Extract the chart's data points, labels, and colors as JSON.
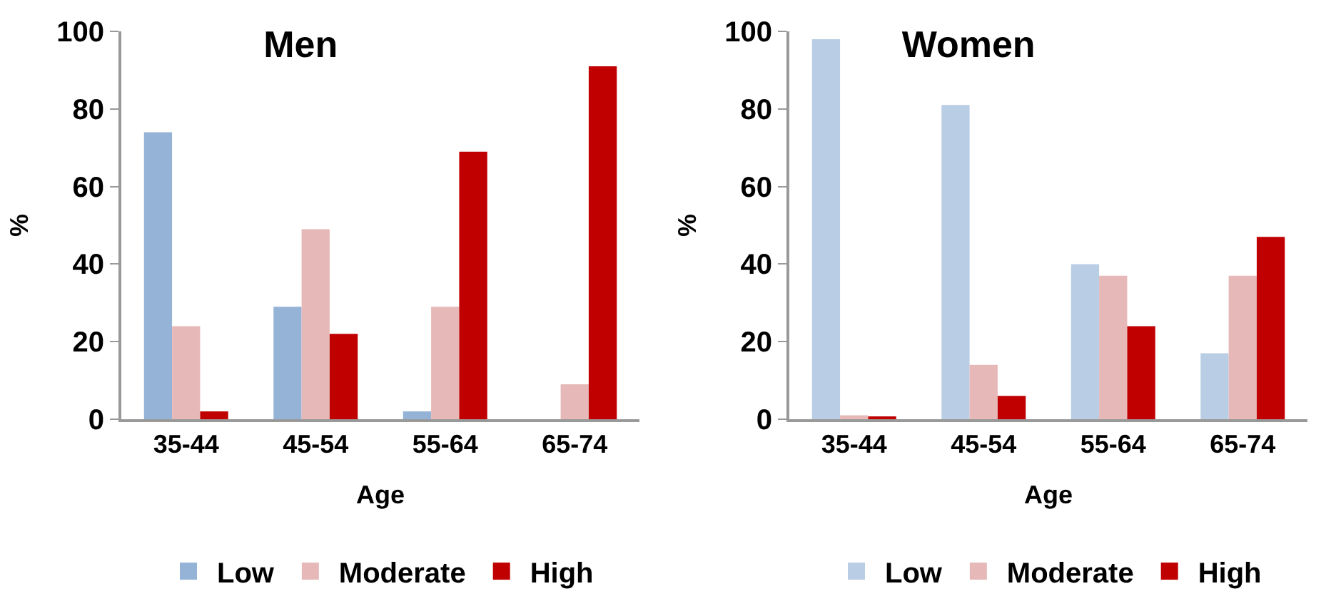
{
  "chart_data": [
    {
      "type": "bar",
      "title": "Men",
      "xlabel": "Age",
      "ylabel": "%",
      "categories": [
        "35-44",
        "45-54",
        "55-64",
        "65-74"
      ],
      "ylim": [
        0,
        100
      ],
      "yticks": [
        0,
        20,
        40,
        60,
        80,
        100
      ],
      "grid": false,
      "legend": "bottom",
      "series": [
        {
          "name": "Low",
          "color": "#95b3d7",
          "values": [
            74,
            29,
            2,
            0
          ]
        },
        {
          "name": "Moderate",
          "color": "#e6b9b8",
          "values": [
            24,
            49,
            29,
            9
          ]
        },
        {
          "name": "High",
          "color": "#c00000",
          "values": [
            2,
            22,
            69,
            91
          ]
        }
      ]
    },
    {
      "type": "bar",
      "title": "Women",
      "xlabel": "Age",
      "ylabel": "%",
      "categories": [
        "35-44",
        "45-54",
        "55-64",
        "65-74"
      ],
      "ylim": [
        0,
        100
      ],
      "yticks": [
        0,
        20,
        40,
        60,
        80,
        100
      ],
      "grid": false,
      "legend": "bottom",
      "series": [
        {
          "name": "Low",
          "color": "#b9cde5",
          "values": [
            98,
            81,
            40,
            17
          ]
        },
        {
          "name": "Moderate",
          "color": "#e6b9b8",
          "values": [
            1,
            14,
            37,
            37
          ]
        },
        {
          "name": "High",
          "color": "#c00000",
          "values": [
            0.5,
            6,
            24,
            47
          ]
        }
      ]
    }
  ]
}
